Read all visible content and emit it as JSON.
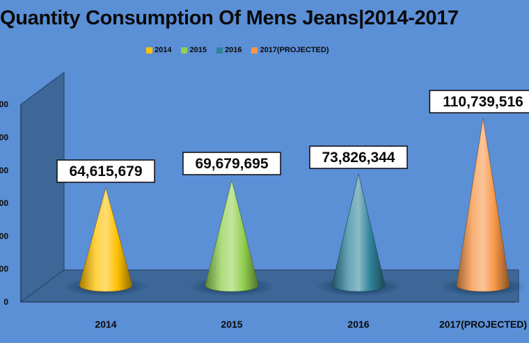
{
  "chart_data": {
    "type": "bar",
    "title": "Quantity Consumption Of Mens Jeans|2014-2017",
    "categories": [
      "2014",
      "2015",
      "2016",
      "2017(PROJECTED)"
    ],
    "values": [
      64615679,
      69679695,
      73826344,
      110739516
    ],
    "value_labels": [
      "64,615,679",
      "69,679,695",
      "73,826,344",
      "110,739,516"
    ],
    "series_colors": [
      "#ffc000",
      "#92d050",
      "#31849b",
      "#f79646"
    ],
    "ytick_labels": [
      "0",
      "00",
      "00",
      "00",
      "00",
      "00",
      "00"
    ],
    "ylim": [
      0,
      120000000
    ],
    "legend": {
      "position": "top",
      "entries": [
        "2014",
        "2015",
        "2016",
        "2017(PROJECTED)"
      ]
    },
    "grid": false
  }
}
